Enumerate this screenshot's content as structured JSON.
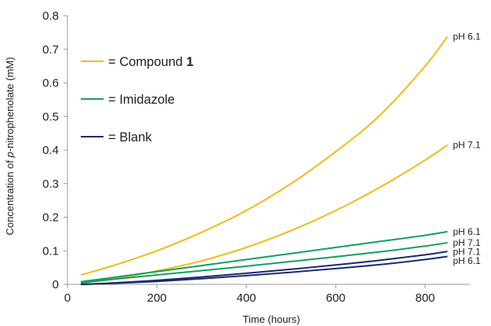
{
  "chart_data": {
    "type": "line",
    "xlabel": "Time (hours)",
    "ylabel_prefix": "Concentration of ",
    "ylabel_italic": "p",
    "ylabel_suffix": "-nitrophenolate (mM)",
    "xlim": [
      0,
      900
    ],
    "ylim": [
      0,
      0.8
    ],
    "x_ticks": [
      0,
      200,
      400,
      600,
      800
    ],
    "y_ticks": [
      0,
      0.1,
      0.2,
      0.3,
      0.4,
      0.5,
      0.6,
      0.7,
      0.8
    ],
    "y_tick_labels": [
      "0",
      "0.1",
      "0.2",
      "0.3",
      "0.4",
      "0.5",
      "0.6",
      "0.7",
      "0.8"
    ],
    "x_tick_labels": [
      "0",
      "200",
      "400",
      "600",
      "800"
    ],
    "grid": false,
    "legend": {
      "position": "top-left",
      "entries": [
        {
          "prefix": "= Compound ",
          "bold": "1",
          "color": "#F6B919"
        },
        {
          "prefix": "= Imidazole",
          "bold": "",
          "color": "#14A05A"
        },
        {
          "prefix": "= Blank",
          "bold": "",
          "color": "#1B2A6E"
        }
      ]
    },
    "series": [
      {
        "label": "pH 6.1",
        "color": "#F6B919",
        "x": [
          30,
          100,
          200,
          300,
          400,
          500,
          600,
          700,
          800,
          850
        ],
        "y": [
          0.028,
          0.055,
          0.1,
          0.155,
          0.22,
          0.3,
          0.395,
          0.505,
          0.65,
          0.738
        ]
      },
      {
        "label": "pH 7.1",
        "color": "#F6B919",
        "x": [
          30,
          100,
          200,
          300,
          400,
          500,
          600,
          700,
          800,
          850
        ],
        "y": [
          0.005,
          0.015,
          0.04,
          0.07,
          0.11,
          0.16,
          0.22,
          0.29,
          0.37,
          0.415
        ]
      },
      {
        "label": "pH 6.1",
        "color": "#14A05A",
        "x": [
          30,
          100,
          200,
          300,
          400,
          500,
          600,
          700,
          800,
          850
        ],
        "y": [
          0.008,
          0.02,
          0.038,
          0.056,
          0.074,
          0.092,
          0.11,
          0.128,
          0.146,
          0.157
        ]
      },
      {
        "label": "pH 7.1",
        "color": "#14A05A",
        "x": [
          30,
          100,
          200,
          300,
          400,
          500,
          600,
          700,
          800,
          850
        ],
        "y": [
          0.004,
          0.015,
          0.028,
          0.041,
          0.054,
          0.068,
          0.082,
          0.097,
          0.114,
          0.124
        ]
      },
      {
        "label": "pH 7.1",
        "color": "#1B2A6E",
        "x": [
          30,
          100,
          200,
          300,
          400,
          500,
          600,
          700,
          800,
          850
        ],
        "y": [
          0.0,
          0.004,
          0.012,
          0.022,
          0.033,
          0.045,
          0.058,
          0.072,
          0.088,
          0.098
        ]
      },
      {
        "label": "pH 6.1",
        "color": "#1B2A6E",
        "x": [
          30,
          100,
          200,
          300,
          400,
          500,
          600,
          700,
          800,
          850
        ],
        "y": [
          0.0,
          0.003,
          0.009,
          0.017,
          0.026,
          0.036,
          0.047,
          0.059,
          0.074,
          0.083
        ]
      }
    ]
  }
}
